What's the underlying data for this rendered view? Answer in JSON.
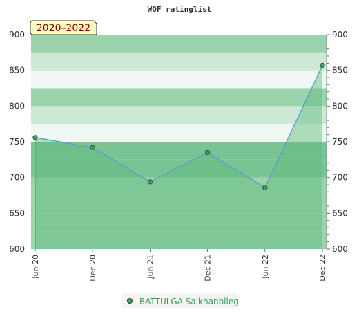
{
  "chart_data": {
    "type": "area",
    "title": "WOF ratinglist",
    "period_label": "2020–2022",
    "categories": [
      "Jun 20",
      "Dec 20",
      "Jun 21",
      "Dec 21",
      "Jun 22",
      "Dec 22"
    ],
    "series": [
      {
        "name": "BATTULGA Saikhanbileg",
        "values": [
          756,
          742,
          694,
          735,
          686,
          857
        ]
      }
    ],
    "ylim": [
      600,
      900
    ],
    "yticks": [
      600,
      650,
      700,
      750,
      800,
      850,
      900
    ],
    "xlabel": "",
    "ylabel": "",
    "legend_position": "bottom",
    "grid": "horizontal bands",
    "colors": {
      "band_dark": "#79c492",
      "band_mid": "#9bd3ad",
      "band_light": "#cde9d6",
      "band_pale": "#eef7f1",
      "fill": "#5dba7b",
      "line": "#5b9bd5",
      "marker_fill": "#3aa35f",
      "marker_stroke": "#333333",
      "label_box": "#fffcc2"
    }
  }
}
